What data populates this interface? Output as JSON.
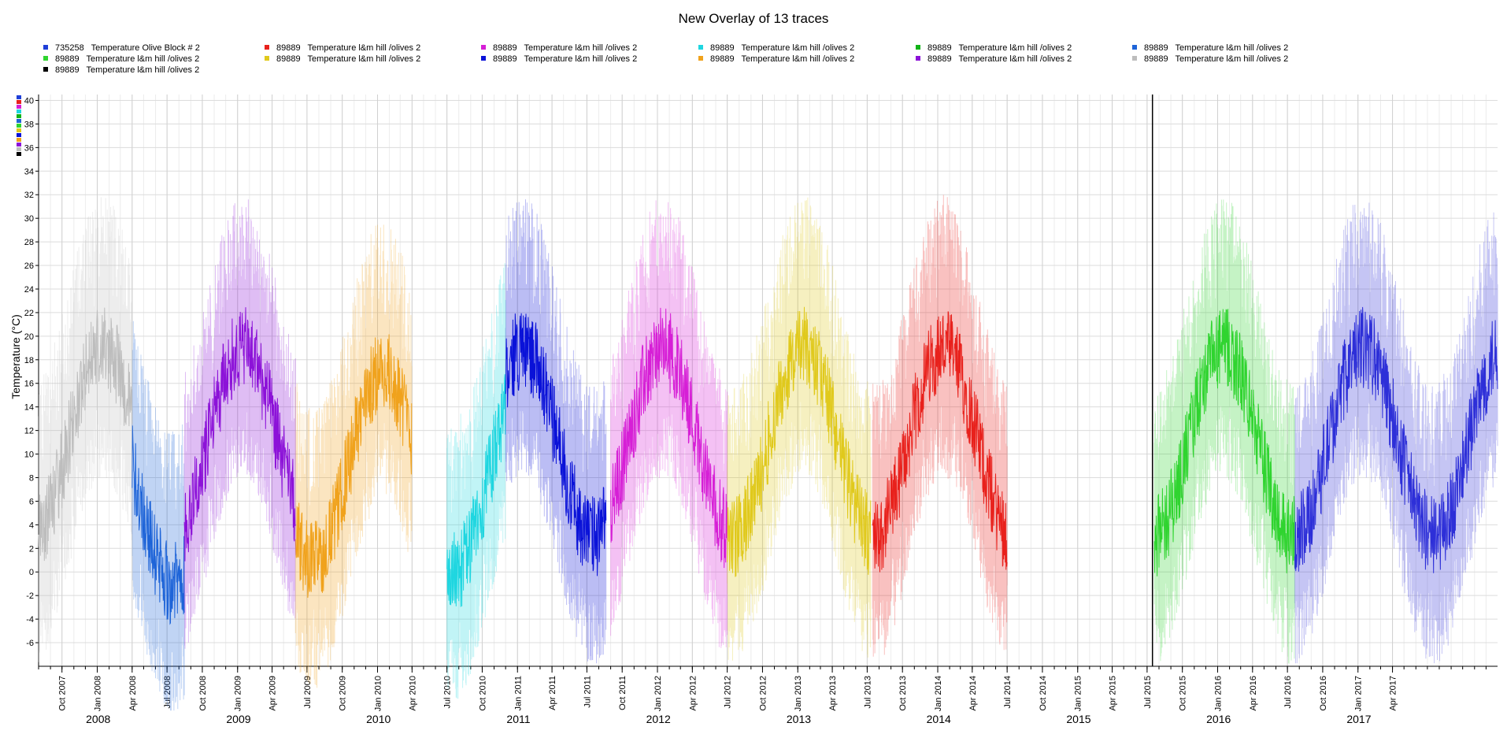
{
  "chart_data": {
    "type": "line",
    "title": "New Overlay of 13 traces",
    "xlabel": "",
    "ylabel": "Temperature (°C)",
    "ylim": [
      -8,
      40.5
    ],
    "xlim": [
      "2007-08-01",
      "2017-12-31"
    ],
    "y_ticks": [
      -6,
      -4,
      -2,
      0,
      2,
      4,
      6,
      8,
      10,
      12,
      14,
      16,
      18,
      20,
      22,
      24,
      26,
      28,
      30,
      32,
      34,
      36,
      38,
      40
    ],
    "grid": true,
    "legend_position": "top",
    "x_ticks": [
      "Oct 2007",
      "Jan 2008",
      "Apr 2008",
      "Jul 2008",
      "Oct 2008",
      "Jan 2009",
      "Apr 2009",
      "Jul 2009",
      "Oct 2009",
      "Jan 2010",
      "Apr 2010",
      "Jul 2010",
      "Oct 2010",
      "Jan 2011",
      "Apr 2011",
      "Jul 2011",
      "Oct 2011",
      "Jan 2012",
      "Apr 2012",
      "Jul 2012",
      "Oct 2012",
      "Jan 2013",
      "Apr 2013",
      "Jul 2013",
      "Oct 2013",
      "Jan 2014",
      "Apr 2014",
      "Jul 2014",
      "Oct 2014",
      "Jan 2015",
      "Apr 2015",
      "Jul 2015",
      "Oct 2015",
      "Jan 2016",
      "Apr 2016",
      "Jul 2016",
      "Oct 2016",
      "Jan 2017",
      "Apr 2017"
    ],
    "year_labels": [
      "2008",
      "2009",
      "2010",
      "2011",
      "2012",
      "2013",
      "2014",
      "2015",
      "2016",
      "2017"
    ],
    "vertical_marker": "2015-07-15",
    "series": [
      {
        "name": "735258   Temperature Olive Block # 2",
        "color": "#1f3fd8",
        "start": null,
        "end": null,
        "base": null
      },
      {
        "name": "89889   Temperature l&m hill /olives 2",
        "color": "#e8211c",
        "start": "2013-07-15",
        "end": "2014-07-01",
        "base": 11
      },
      {
        "name": "89889   Temperature l&m hill /olives 2",
        "color": "#d61fd6",
        "start": "2011-09-01",
        "end": "2012-07-01",
        "base": 11
      },
      {
        "name": "89889   Temperature l&m hill /olives 2",
        "color": "#1fd6e0",
        "start": "2010-07-01",
        "end": "2010-12-01",
        "base": 8
      },
      {
        "name": "89889   Temperature l&m hill /olives 2",
        "color": "#11b317",
        "start": null,
        "end": null,
        "base": null
      },
      {
        "name": "89889   Temperature l&m hill /olives 2",
        "color": "#1e64d8",
        "start": "2008-04-01",
        "end": "2008-08-15",
        "base": 7
      },
      {
        "name": "89889   Temperature l&m hill /olives 2",
        "color": "#2fd42f",
        "start": "2015-07-20",
        "end": "2016-07-20",
        "base": 11
      },
      {
        "name": "89889   Temperature l&m hill /olives 2",
        "color": "#e0c91c",
        "start": "2012-07-01",
        "end": "2013-07-10",
        "base": 11
      },
      {
        "name": "89889   Temperature l&m hill /olives 2",
        "color": "#0a12d8",
        "start": "2010-12-01",
        "end": "2011-08-20",
        "base": 11
      },
      {
        "name": "89889   Temperature l&m hill /olives 2",
        "color": "#f0a21c",
        "start": "2009-06-01",
        "end": "2010-03-31",
        "base": 9
      },
      {
        "name": "89889   Temperature l&m hill /olives 2",
        "color": "#8c12d8",
        "start": "2008-08-15",
        "end": "2009-06-01",
        "base": 11
      },
      {
        "name": "89889   Temperature l&m hill /olives 2",
        "color": "#bdbdbd",
        "start": "2007-08-01",
        "end": "2008-04-01",
        "base": 11
      },
      {
        "name": "89889   Temperature l&m hill /olives 2",
        "color": "#000000",
        "start": null,
        "end": null,
        "base": null
      },
      {
        "name": "",
        "color": "#2d2fd8",
        "start": "2016-07-20",
        "end": "2017-12-31",
        "base": 11
      }
    ]
  }
}
